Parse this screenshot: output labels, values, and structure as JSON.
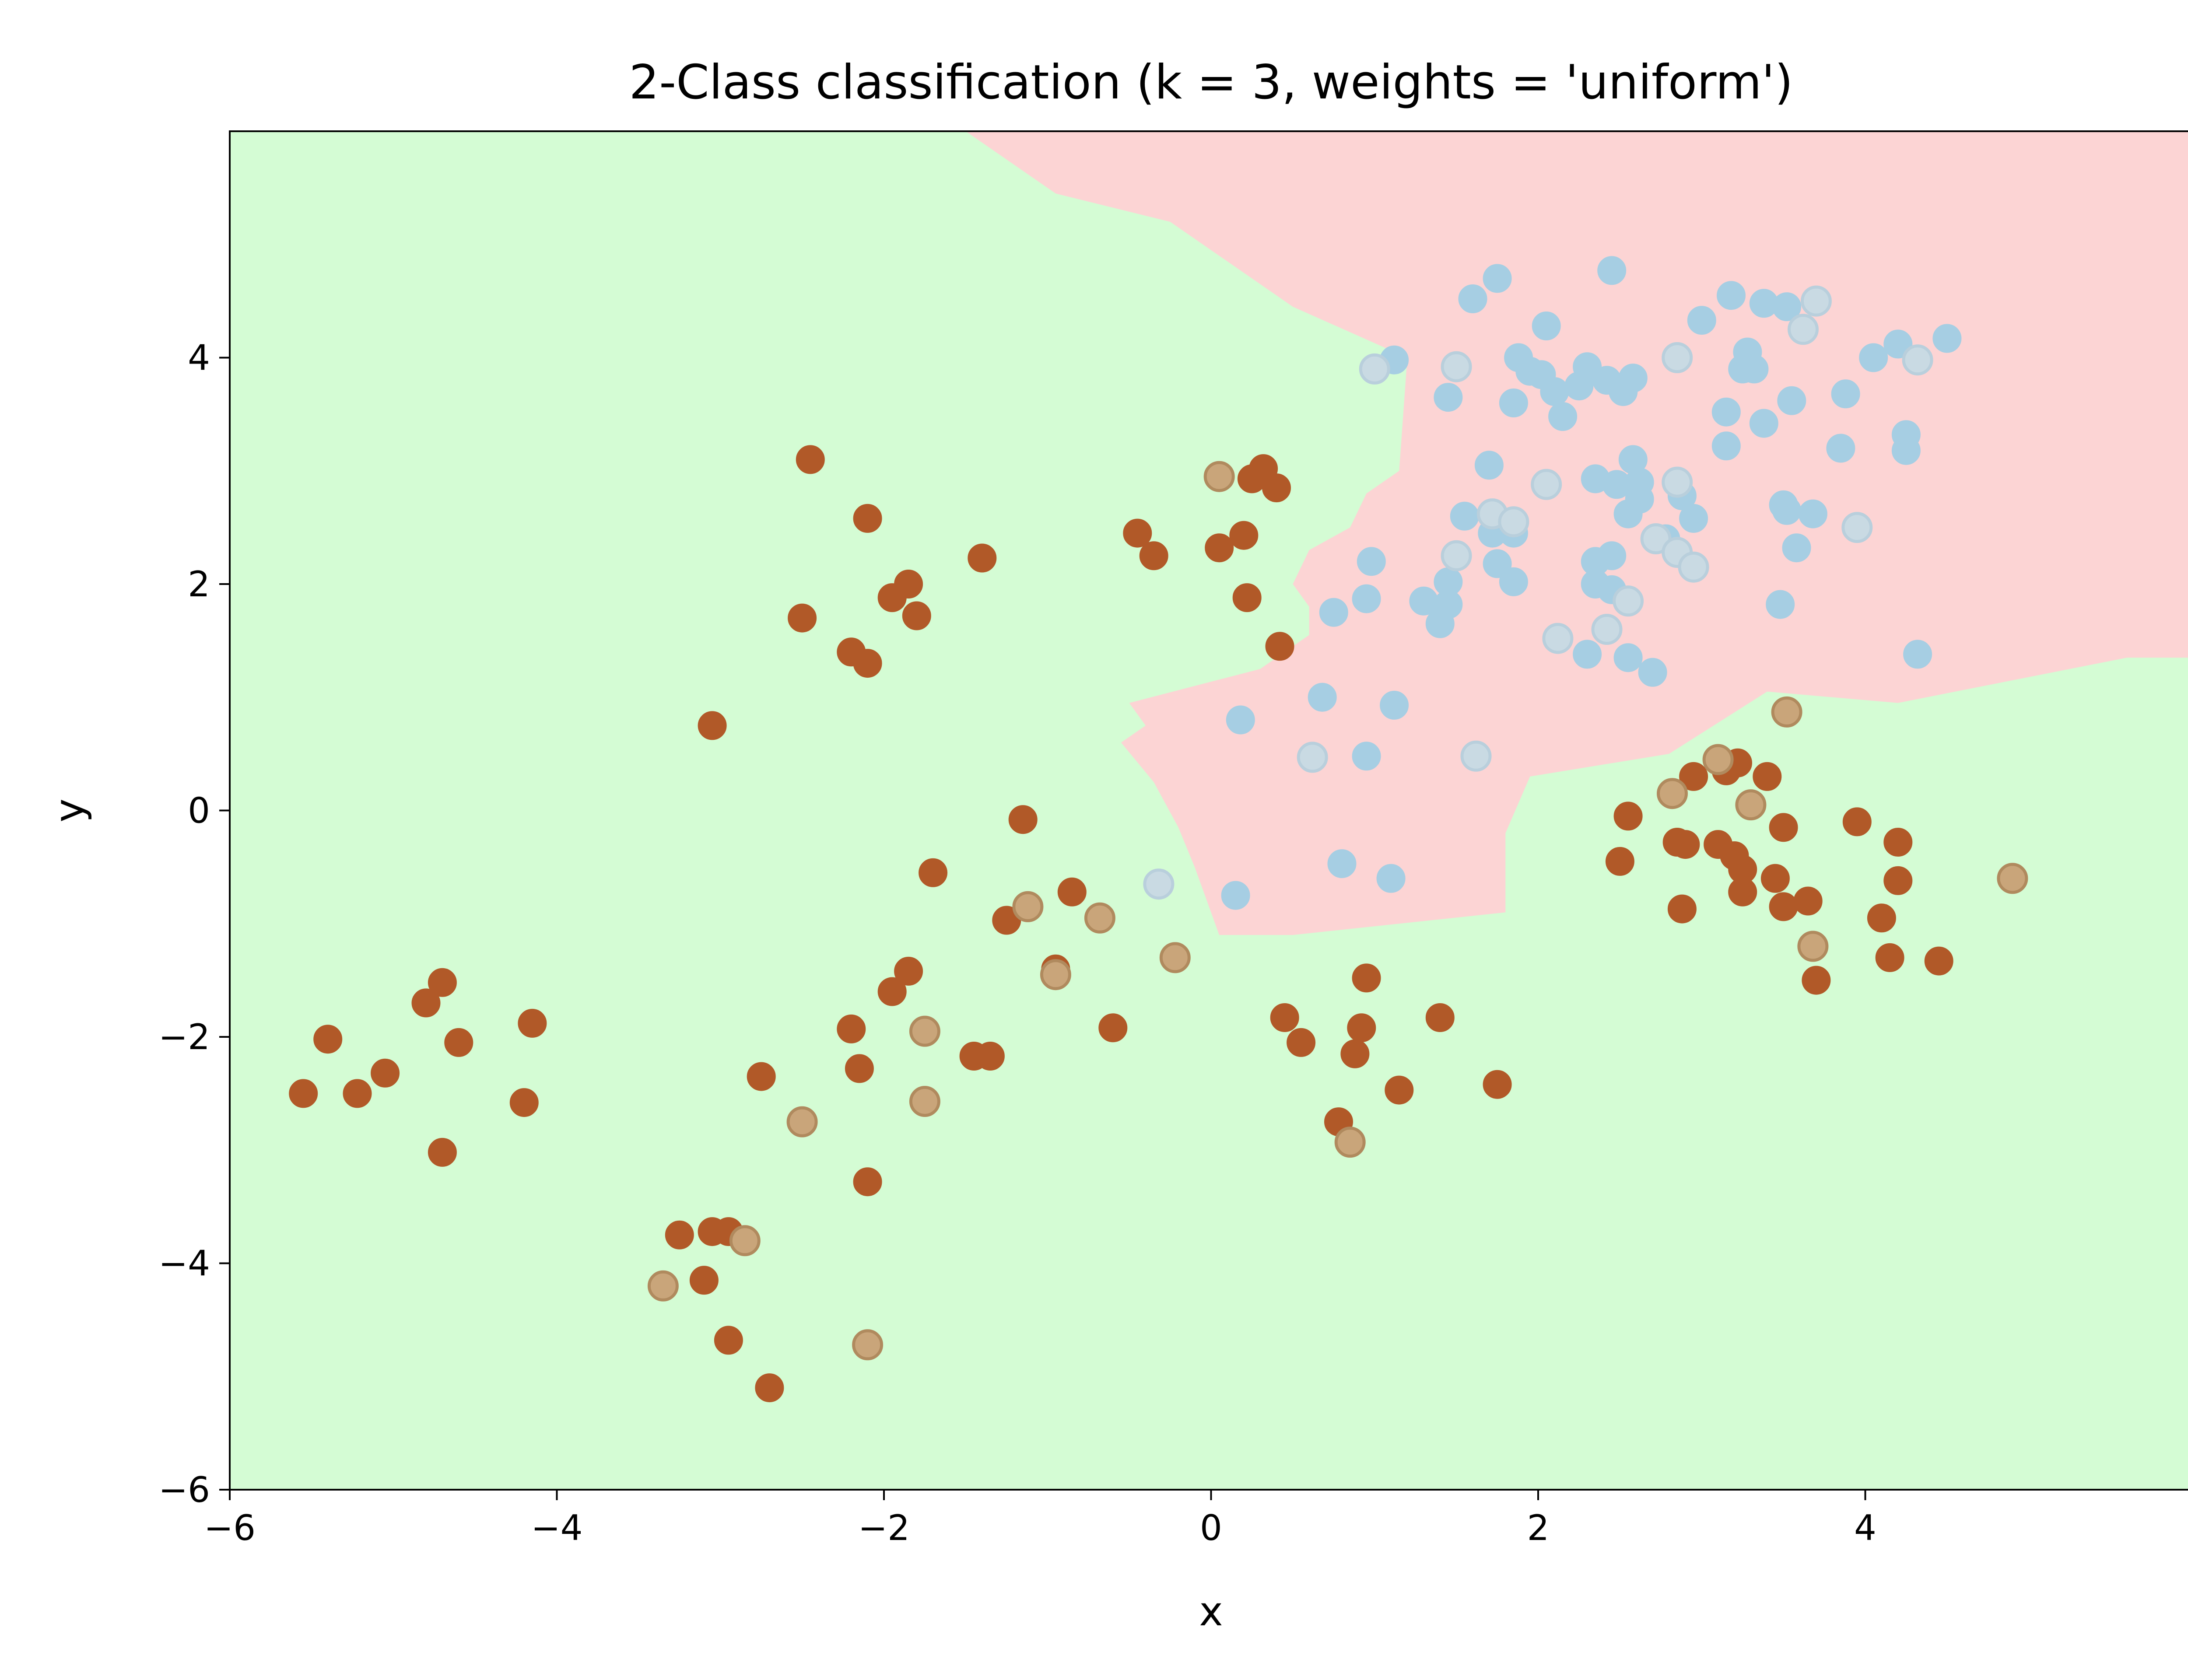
{
  "chart_data": {
    "type": "scatter",
    "title": "2-Class classification (k = 3, weights = 'uniform')",
    "xlabel": "x",
    "ylabel": "y",
    "xlim": [
      -6,
      6
    ],
    "ylim": [
      -6,
      6
    ],
    "x_ticks": [
      -6,
      -4,
      -2,
      0,
      2,
      4
    ],
    "y_ticks": [
      -6,
      -4,
      -2,
      0,
      2,
      4
    ],
    "x_tick_labels": [
      "−6",
      "−4",
      "−2",
      "0",
      "2",
      "4"
    ],
    "y_tick_labels": [
      "−6",
      "−4",
      "−2",
      "0",
      "2",
      "4"
    ],
    "grid": false,
    "legend": "none",
    "colors": {
      "region_class_0": "#d4fcd4",
      "region_class_1": "#fcd4d4",
      "points_class_0": "#b15928",
      "points_class_1": "#a6cee3",
      "test_class_0": "#c9a57a",
      "test_class_1": "#c9dae3"
    },
    "decision_boundary": [
      [
        -1.5,
        6
      ],
      [
        -0.95,
        5.45
      ],
      [
        -0.25,
        5.2
      ],
      [
        0.5,
        4.45
      ],
      [
        1.2,
        4.0
      ],
      [
        1.15,
        3.0
      ],
      [
        0.95,
        2.8
      ],
      [
        0.85,
        2.5
      ],
      [
        0.6,
        2.3
      ],
      [
        0.5,
        2.0
      ],
      [
        0.6,
        1.8
      ],
      [
        0.6,
        1.55
      ],
      [
        0.3,
        1.25
      ],
      [
        -0.5,
        0.95
      ],
      [
        -0.4,
        0.75
      ],
      [
        -0.55,
        0.6
      ],
      [
        -0.35,
        0.25
      ],
      [
        -0.2,
        -0.15
      ],
      [
        -0.1,
        -0.5
      ],
      [
        0.05,
        -1.1
      ],
      [
        0.5,
        -1.1
      ],
      [
        1.8,
        -0.9
      ],
      [
        1.8,
        -0.2
      ],
      [
        1.95,
        0.3
      ],
      [
        2.8,
        0.5
      ],
      [
        3.4,
        1.05
      ],
      [
        4.2,
        0.95
      ],
      [
        5.6,
        1.35
      ],
      [
        6,
        1.35
      ]
    ],
    "series": [
      {
        "role": "training",
        "class": 0,
        "points": [
          [
            -5.55,
            -2.5
          ],
          [
            -5.4,
            -2.02
          ],
          [
            -5.22,
            -2.5
          ],
          [
            -5.05,
            -2.32
          ],
          [
            -4.8,
            -1.7
          ],
          [
            -4.7,
            -1.52
          ],
          [
            -4.6,
            -2.05
          ],
          [
            -4.7,
            -3.02
          ],
          [
            -4.2,
            -2.58
          ],
          [
            -4.15,
            -1.88
          ],
          [
            -3.25,
            -3.75
          ],
          [
            -3.1,
            -4.15
          ],
          [
            -3.05,
            -3.72
          ],
          [
            -2.95,
            -3.72
          ],
          [
            -2.95,
            -4.68
          ],
          [
            -2.7,
            -5.1
          ],
          [
            -2.75,
            -2.35
          ],
          [
            -2.1,
            -3.28
          ],
          [
            -2.2,
            -1.93
          ],
          [
            -2.15,
            -2.28
          ],
          [
            -1.95,
            -1.6
          ],
          [
            -1.85,
            -1.42
          ],
          [
            -1.7,
            -0.55
          ],
          [
            -1.25,
            -0.97
          ],
          [
            -1.15,
            -0.08
          ],
          [
            -0.95,
            -1.4
          ],
          [
            -0.85,
            -0.72
          ],
          [
            -0.6,
            -1.92
          ],
          [
            -1.45,
            -2.17
          ],
          [
            -1.35,
            -2.17
          ],
          [
            -3.05,
            0.75
          ],
          [
            -2.5,
            1.7
          ],
          [
            -2.45,
            3.1
          ],
          [
            -2.2,
            1.4
          ],
          [
            -2.1,
            1.3
          ],
          [
            -2.1,
            2.58
          ],
          [
            -1.95,
            1.88
          ],
          [
            -1.85,
            2.0
          ],
          [
            -1.8,
            1.72
          ],
          [
            -1.4,
            2.23
          ],
          [
            -0.45,
            2.45
          ],
          [
            -0.35,
            2.25
          ],
          [
            0.05,
            2.32
          ],
          [
            0.2,
            2.43
          ],
          [
            0.22,
            1.88
          ],
          [
            0.25,
            2.93
          ],
          [
            0.32,
            3.02
          ],
          [
            0.4,
            2.85
          ],
          [
            0.42,
            1.45
          ],
          [
            0.45,
            -1.83
          ],
          [
            0.55,
            -2.05
          ],
          [
            0.78,
            -2.75
          ],
          [
            0.88,
            -2.15
          ],
          [
            0.92,
            -1.92
          ],
          [
            0.95,
            -1.48
          ],
          [
            1.15,
            -2.47
          ],
          [
            1.4,
            -1.83
          ],
          [
            1.75,
            -2.42
          ],
          [
            2.5,
            -0.45
          ],
          [
            2.55,
            -0.05
          ],
          [
            2.85,
            -0.28
          ],
          [
            2.9,
            -0.3
          ],
          [
            2.88,
            -0.87
          ],
          [
            2.95,
            0.3
          ],
          [
            3.1,
            -0.3
          ],
          [
            3.15,
            0.35
          ],
          [
            3.22,
            0.42
          ],
          [
            3.2,
            -0.4
          ],
          [
            3.25,
            -0.52
          ],
          [
            3.25,
            -0.72
          ],
          [
            3.4,
            0.3
          ],
          [
            3.45,
            -0.6
          ],
          [
            3.5,
            -0.15
          ],
          [
            3.5,
            -0.85
          ],
          [
            3.65,
            -0.8
          ],
          [
            3.7,
            -1.5
          ],
          [
            3.95,
            -0.1
          ],
          [
            4.1,
            -0.95
          ],
          [
            4.15,
            -1.3
          ],
          [
            4.2,
            -0.28
          ],
          [
            4.2,
            -0.62
          ],
          [
            4.45,
            -1.33
          ]
        ]
      },
      {
        "role": "training",
        "class": 1,
        "points": [
          [
            0.15,
            -0.75
          ],
          [
            0.18,
            0.8
          ],
          [
            0.68,
            1.0
          ],
          [
            0.75,
            1.75
          ],
          [
            0.8,
            -0.47
          ],
          [
            0.95,
            0.48
          ],
          [
            0.95,
            1.87
          ],
          [
            0.98,
            2.2
          ],
          [
            1.1,
            -0.6
          ],
          [
            1.12,
            0.93
          ],
          [
            1.12,
            3.98
          ],
          [
            1.3,
            1.85
          ],
          [
            1.4,
            1.65
          ],
          [
            1.45,
            1.82
          ],
          [
            1.45,
            2.02
          ],
          [
            1.45,
            3.65
          ],
          [
            1.55,
            2.6
          ],
          [
            1.6,
            4.52
          ],
          [
            1.7,
            3.05
          ],
          [
            1.72,
            2.45
          ],
          [
            1.75,
            2.18
          ],
          [
            1.75,
            4.7
          ],
          [
            1.85,
            2.02
          ],
          [
            1.85,
            2.45
          ],
          [
            1.85,
            3.6
          ],
          [
            1.88,
            4.0
          ],
          [
            1.95,
            3.88
          ],
          [
            2.02,
            3.85
          ],
          [
            2.05,
            4.28
          ],
          [
            2.1,
            3.7
          ],
          [
            2.15,
            3.48
          ],
          [
            2.25,
            3.75
          ],
          [
            2.3,
            1.38
          ],
          [
            2.3,
            3.92
          ],
          [
            2.35,
            2.2
          ],
          [
            2.35,
            2.0
          ],
          [
            2.35,
            2.93
          ],
          [
            2.42,
            3.8
          ],
          [
            2.45,
            1.95
          ],
          [
            2.45,
            2.25
          ],
          [
            2.45,
            4.77
          ],
          [
            2.48,
            2.88
          ],
          [
            2.52,
            3.7
          ],
          [
            2.55,
            1.35
          ],
          [
            2.55,
            2.62
          ],
          [
            2.58,
            3.1
          ],
          [
            2.58,
            3.82
          ],
          [
            2.62,
            2.75
          ],
          [
            2.62,
            2.9
          ],
          [
            2.7,
            1.22
          ],
          [
            2.78,
            2.4
          ],
          [
            2.88,
            2.78
          ],
          [
            2.95,
            2.58
          ],
          [
            3.0,
            4.33
          ],
          [
            3.15,
            3.22
          ],
          [
            3.15,
            3.52
          ],
          [
            3.18,
            4.55
          ],
          [
            3.25,
            3.9
          ],
          [
            3.28,
            4.05
          ],
          [
            3.32,
            3.9
          ],
          [
            3.38,
            3.42
          ],
          [
            3.38,
            4.48
          ],
          [
            3.48,
            1.82
          ],
          [
            3.5,
            2.7
          ],
          [
            3.52,
            2.65
          ],
          [
            3.52,
            4.45
          ],
          [
            3.55,
            3.62
          ],
          [
            3.58,
            2.32
          ],
          [
            3.68,
            2.62
          ],
          [
            3.85,
            3.2
          ],
          [
            3.88,
            3.68
          ],
          [
            4.05,
            4.0
          ],
          [
            4.2,
            4.12
          ],
          [
            4.25,
            3.32
          ],
          [
            4.25,
            3.18
          ],
          [
            4.32,
            1.38
          ],
          [
            4.5,
            4.17
          ]
        ]
      },
      {
        "role": "test",
        "class": 0,
        "points": [
          [
            -3.35,
            -4.2
          ],
          [
            -2.85,
            -3.8
          ],
          [
            -2.5,
            -2.75
          ],
          [
            -2.1,
            -4.72
          ],
          [
            -1.75,
            -1.95
          ],
          [
            -1.75,
            -2.57
          ],
          [
            -1.12,
            -0.85
          ],
          [
            -0.95,
            -1.45
          ],
          [
            -0.68,
            -0.95
          ],
          [
            -0.22,
            -1.3
          ],
          [
            0.05,
            2.95
          ],
          [
            0.85,
            -2.93
          ],
          [
            2.82,
            0.15
          ],
          [
            3.1,
            0.45
          ],
          [
            3.3,
            0.05
          ],
          [
            3.52,
            0.87
          ],
          [
            3.68,
            -1.2
          ],
          [
            4.9,
            -0.6
          ]
        ]
      },
      {
        "role": "test",
        "class": 1,
        "points": [
          [
            -0.32,
            -0.65
          ],
          [
            0.62,
            0.47
          ],
          [
            1.0,
            3.9
          ],
          [
            1.5,
            3.92
          ],
          [
            1.5,
            2.25
          ],
          [
            1.62,
            0.48
          ],
          [
            1.72,
            2.62
          ],
          [
            1.85,
            2.55
          ],
          [
            2.05,
            2.88
          ],
          [
            2.12,
            1.52
          ],
          [
            2.42,
            1.6
          ],
          [
            2.55,
            1.85
          ],
          [
            2.72,
            2.4
          ],
          [
            2.85,
            2.28
          ],
          [
            2.85,
            2.9
          ],
          [
            2.85,
            4.0
          ],
          [
            2.95,
            2.15
          ],
          [
            3.62,
            4.25
          ],
          [
            3.7,
            4.5
          ],
          [
            3.95,
            2.5
          ],
          [
            4.32,
            3.98
          ]
        ]
      }
    ]
  }
}
